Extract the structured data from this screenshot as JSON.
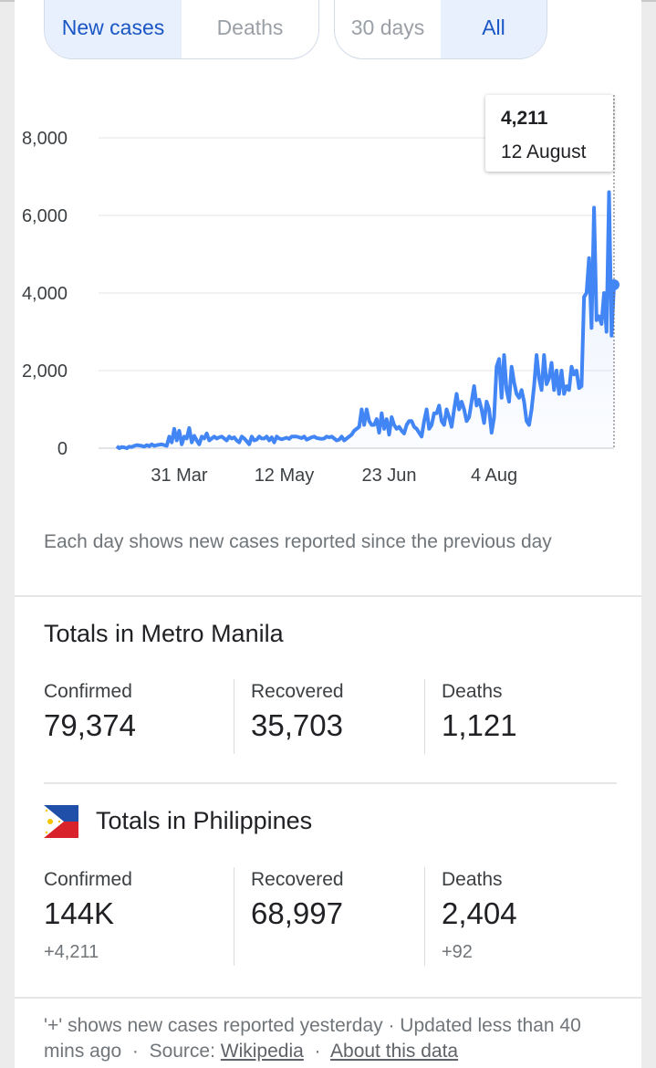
{
  "toggles": {
    "metric": [
      {
        "label": "New cases",
        "selected": true
      },
      {
        "label": "Deaths",
        "selected": false
      }
    ],
    "range": [
      {
        "label": "30 days",
        "selected": false
      },
      {
        "label": "All",
        "selected": true
      }
    ]
  },
  "tooltip": {
    "value": "4,211",
    "date": "12 August"
  },
  "chart_data": {
    "type": "area",
    "yticks": [
      "0",
      "2,000",
      "4,000",
      "6,000",
      "8,000"
    ],
    "ylim": [
      0,
      8000
    ],
    "xticks": [
      {
        "label": "31 Mar",
        "index": 25
      },
      {
        "label": "12 May",
        "index": 67
      },
      {
        "label": "23 Jun",
        "index": 109
      },
      {
        "label": "4 Aug",
        "index": 151
      }
    ],
    "series": [
      {
        "color": "#4285f4",
        "values": [
          50,
          0,
          30,
          20,
          0,
          40,
          30,
          60,
          80,
          70,
          60,
          40,
          80,
          50,
          100,
          60,
          80,
          90,
          100,
          80,
          60,
          300,
          150,
          500,
          200,
          450,
          100,
          300,
          250,
          520,
          150,
          320,
          200,
          100,
          300,
          250,
          380,
          200,
          250,
          300,
          250,
          280,
          300,
          250,
          200,
          300,
          250,
          280,
          200,
          150,
          300,
          250,
          180,
          100,
          300,
          200,
          220,
          300,
          250,
          250,
          300,
          200,
          280,
          150,
          300,
          250,
          230,
          250,
          270,
          240,
          300,
          300,
          300,
          280,
          260,
          300,
          220,
          250,
          280,
          300,
          260,
          250,
          240,
          250,
          300,
          280,
          300,
          250,
          200,
          220,
          300,
          200,
          250,
          300,
          350,
          450,
          500,
          550,
          1000,
          600,
          1000,
          700,
          600,
          600,
          750,
          400,
          900,
          500,
          750,
          350,
          800,
          600,
          500,
          550,
          450,
          380,
          600,
          700,
          700,
          550,
          500,
          400,
          300,
          700,
          1000,
          500,
          600,
          900,
          900,
          1100,
          700,
          600,
          1000,
          800,
          550,
          1000,
          1400,
          1000,
          1200,
          1000,
          700,
          800,
          1200,
          1600,
          1100,
          1250,
          1000,
          650,
          1200,
          1000,
          400,
          800,
          2100,
          2300,
          1300,
          2400,
          1500,
          1200,
          2100,
          1700,
          1400,
          1300,
          1500,
          1200,
          700,
          600,
          1000,
          1600,
          2400,
          1800,
          1500,
          2400,
          1650,
          1800,
          2200,
          1500,
          2000,
          1400,
          2000,
          1400,
          1600,
          1500,
          2100,
          1900,
          2000,
          1550,
          1600,
          3900,
          4000,
          4900,
          3100,
          6200,
          3300,
          3400,
          3200,
          4000,
          3000,
          6600,
          2900,
          4211
        ]
      }
    ]
  },
  "note": "Each day shows new cases reported since the previous day",
  "metro": {
    "title": "Totals in Metro Manila",
    "confirmed_label": "Confirmed",
    "confirmed": "79,374",
    "recovered_label": "Recovered",
    "recovered": "35,703",
    "deaths_label": "Deaths",
    "deaths": "1,121"
  },
  "ph": {
    "title": "Totals in Philippines",
    "confirmed_label": "Confirmed",
    "confirmed": "144K",
    "confirmed_delta": "+4,211",
    "recovered_label": "Recovered",
    "recovered": "68,997",
    "deaths_label": "Deaths",
    "deaths": "2,404",
    "deaths_delta": "+92"
  },
  "footer": {
    "prefix": "'+' shows new cases reported yesterday · Updated less than 40 mins ago",
    "source_label": "Source:",
    "source_link": "Wikipedia",
    "about_link": "About this data"
  }
}
